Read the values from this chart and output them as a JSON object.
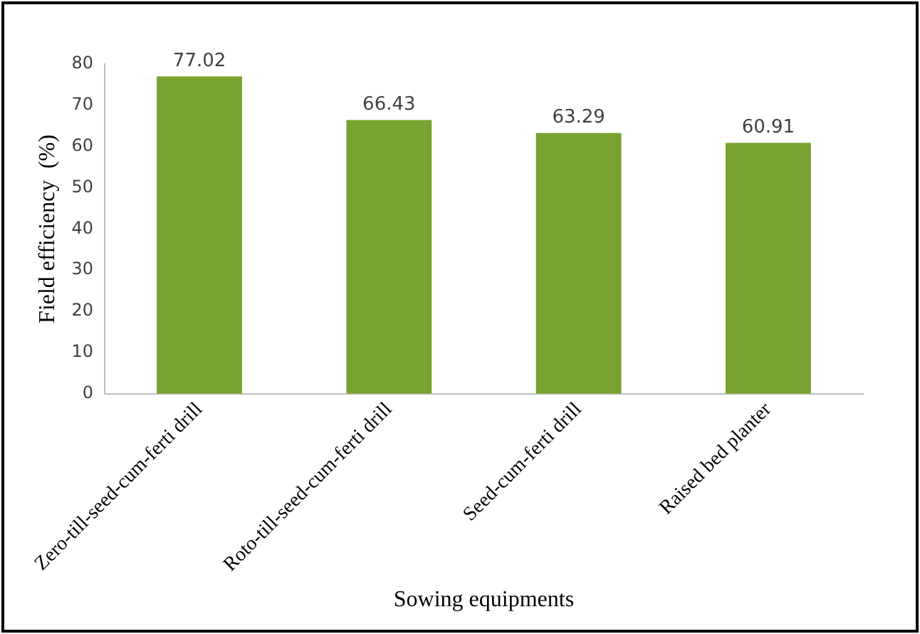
{
  "chart_data": {
    "type": "bar",
    "xlabel": "Sowing equipments",
    "ylabel": "Field efficiency  (%)",
    "categories": [
      "Zero-till-seed-cum-ferti drill",
      "Roto-till-seed-cum-ferti drill",
      "Seed-cum-ferti drill",
      "Raised bed planter"
    ],
    "values": [
      77.02,
      66.43,
      63.29,
      60.91
    ],
    "color": "#77a22f",
    "ylim": [
      0,
      80
    ],
    "yticks": [
      0,
      10,
      20,
      30,
      40,
      50,
      60,
      70,
      80
    ],
    "grid": false,
    "legend": false,
    "data_labels": true
  }
}
